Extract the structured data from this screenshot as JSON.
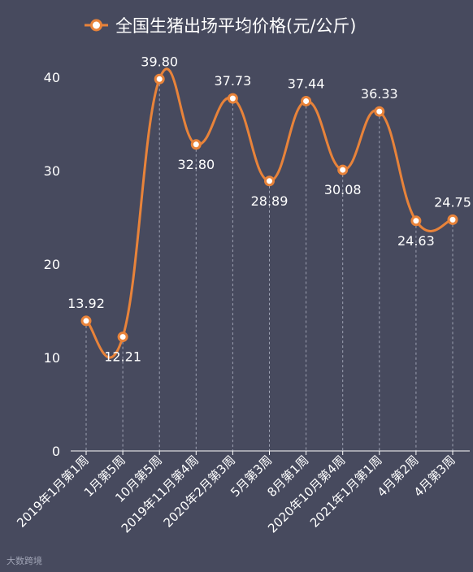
{
  "colors": {
    "background": "#474a5e",
    "line": "#e8833a",
    "text": "#ffffff",
    "axis": "#ffffff",
    "guide": "#9ea2b3"
  },
  "chart_data": {
    "type": "line",
    "title": "全国生猪出场平均价格(元/公斤)",
    "legend_position": "top",
    "categories": [
      "2019年1月第1周",
      "1月第5周",
      "10月第5周",
      "2019年11月第4周",
      "2020年2月第3周",
      "5月第3周",
      "8月第1周",
      "2020年10月第4周",
      "2021年1月第1周",
      "4月第2周",
      "4月第3周"
    ],
    "series": [
      {
        "name": "全国生猪出场平均价格(元/公斤)",
        "values": [
          13.92,
          12.21,
          39.8,
          32.8,
          37.73,
          28.89,
          37.44,
          30.08,
          36.33,
          24.63,
          24.75
        ],
        "labels": [
          "13.92",
          "12.21",
          "39.80",
          "32.80",
          "37.73",
          "28.89",
          "37.44",
          "30.08",
          "36.33",
          "24.63",
          "24.75"
        ],
        "label_side": [
          "above",
          "below",
          "above",
          "below",
          "above",
          "below",
          "above",
          "below",
          "above",
          "below",
          "above"
        ]
      }
    ],
    "ylim": [
      0,
      40
    ],
    "yticks": [
      "0",
      "10",
      "20",
      "30",
      "40"
    ],
    "grid": false
  },
  "footer": {
    "logo_text": "大数跨境"
  }
}
